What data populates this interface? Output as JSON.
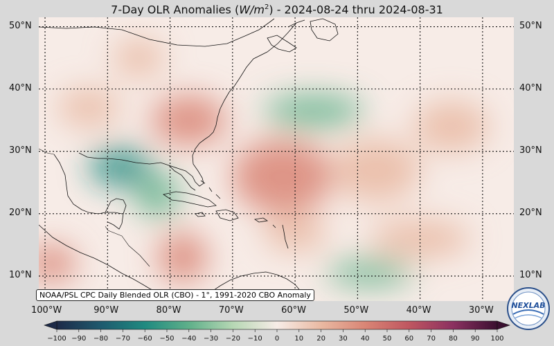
{
  "title": {
    "prefix": "7-Day OLR Anomalies (",
    "unit_base": "W/m",
    "unit_exp": "2",
    "suffix": ") - 2024-08-24 thru 2024-08-31"
  },
  "credit": "NOAA/PSL CPC Daily Blended OLR (CBO) - 1°, 1991-2020 CBO Anomaly",
  "logo_text": "NEXLAB",
  "map": {
    "lon_range": [
      -101,
      -25
    ],
    "lat_range": [
      6,
      51.5
    ],
    "lat_ticks": [
      {
        "value": 50,
        "label": "50°N"
      },
      {
        "value": 40,
        "label": "40°N"
      },
      {
        "value": 30,
        "label": "30°N"
      },
      {
        "value": 20,
        "label": "20°N"
      },
      {
        "value": 10,
        "label": "10°N"
      }
    ],
    "lon_ticks": [
      {
        "value": -100,
        "label": "100°W"
      },
      {
        "value": -90,
        "label": "90°W"
      },
      {
        "value": -80,
        "label": "80°W"
      },
      {
        "value": -70,
        "label": "70°W"
      },
      {
        "value": -60,
        "label": "60°W"
      },
      {
        "value": -50,
        "label": "50°W"
      },
      {
        "value": -40,
        "label": "40°W"
      },
      {
        "value": -30,
        "label": "30°W"
      }
    ],
    "anomaly_blobs": [
      {
        "lon": -88,
        "lat": 27.5,
        "rlon": 5,
        "rlat": 3,
        "value": -40
      },
      {
        "lon": -82,
        "lat": 23,
        "rlon": 3.5,
        "rlat": 3.5,
        "value": -25
      },
      {
        "lon": -57,
        "lat": 36.5,
        "rlon": 8,
        "rlat": 2.5,
        "value": -25
      },
      {
        "lon": -48,
        "lat": 10.5,
        "rlon": 7,
        "rlat": 2,
        "value": -35
      },
      {
        "lon": -99,
        "lat": 12,
        "rlon": 4,
        "rlat": 3,
        "value": 35
      },
      {
        "lon": -77,
        "lat": 35,
        "rlon": 6,
        "rlat": 4,
        "value": 25
      },
      {
        "lon": -93,
        "lat": 37,
        "rlon": 5,
        "rlat": 3,
        "value": 20
      },
      {
        "lon": -62,
        "lat": 26,
        "rlon": 8,
        "rlat": 6,
        "value": 25
      },
      {
        "lon": -47,
        "lat": 27,
        "rlon": 7,
        "rlat": 5,
        "value": 20
      },
      {
        "lon": -35,
        "lat": 34,
        "rlon": 6,
        "rlat": 4,
        "value": 18
      },
      {
        "lon": -78,
        "lat": 13,
        "rlon": 4,
        "rlat": 4,
        "value": 22
      },
      {
        "lon": -40,
        "lat": 16,
        "rlon": 8,
        "rlat": 3,
        "value": 15
      },
      {
        "lon": -60,
        "lat": 17,
        "rlon": 5,
        "rlat": 3,
        "value": 15
      },
      {
        "lon": -85,
        "lat": 45,
        "rlon": 4,
        "rlat": 3,
        "value": 12
      }
    ]
  },
  "colorbar": {
    "min": -100,
    "max": 100,
    "ticks": [
      -100,
      -90,
      -80,
      -70,
      -60,
      -50,
      -40,
      -30,
      -20,
      -10,
      0,
      10,
      20,
      30,
      40,
      50,
      60,
      70,
      80,
      90,
      100
    ],
    "colors": [
      {
        "value": -100,
        "color": "#1d2a48"
      },
      {
        "value": -80,
        "color": "#1e5a6e"
      },
      {
        "value": -60,
        "color": "#1f8a80"
      },
      {
        "value": -40,
        "color": "#5fb08a"
      },
      {
        "value": -20,
        "color": "#b6d7b4"
      },
      {
        "value": 0,
        "color": "#f7ece7"
      },
      {
        "value": 20,
        "color": "#e9b9a2"
      },
      {
        "value": 40,
        "color": "#d98575"
      },
      {
        "value": 60,
        "color": "#bf5660"
      },
      {
        "value": 80,
        "color": "#8b3060"
      },
      {
        "value": 100,
        "color": "#3a1030"
      }
    ]
  }
}
